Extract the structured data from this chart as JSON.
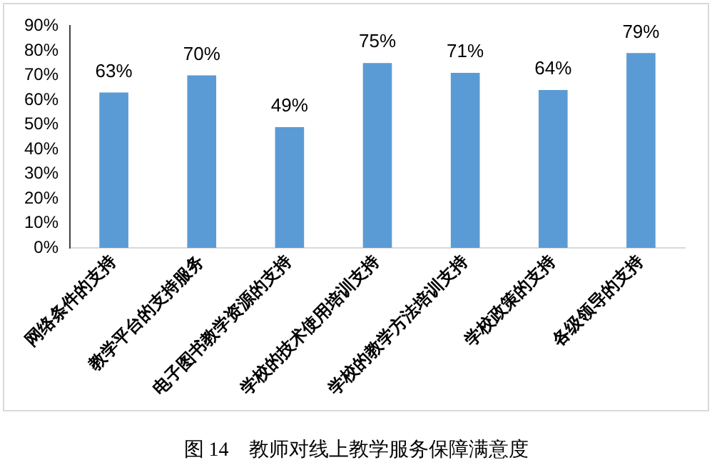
{
  "chart_data": {
    "type": "bar",
    "title": "图 14　教师对线上教学服务保障满意度",
    "categories": [
      "网络条件的支持",
      "教学平台的支持服务",
      "电子图书教学资源的支持",
      "学校的技术使用培训支持",
      "学校的教学方法培训支持",
      "学校政策的支持",
      "各级领导的支持"
    ],
    "values": [
      63,
      70,
      49,
      75,
      71,
      64,
      79
    ],
    "value_labels": [
      "63%",
      "70%",
      "49%",
      "75%",
      "71%",
      "64%",
      "79%"
    ],
    "color": "#5b9bd5",
    "ylim": [
      0,
      90
    ],
    "yticks": [
      {
        "value": 0,
        "label": "0%"
      },
      {
        "value": 10,
        "label": "10%"
      },
      {
        "value": 20,
        "label": "20%"
      },
      {
        "value": 30,
        "label": "30%"
      },
      {
        "value": 40,
        "label": "40%"
      },
      {
        "value": 50,
        "label": "50%"
      },
      {
        "value": 60,
        "label": "60%"
      },
      {
        "value": 70,
        "label": "70%"
      },
      {
        "value": 80,
        "label": "80%"
      },
      {
        "value": 90,
        "label": "90%"
      }
    ],
    "grid": false,
    "legend": false
  }
}
